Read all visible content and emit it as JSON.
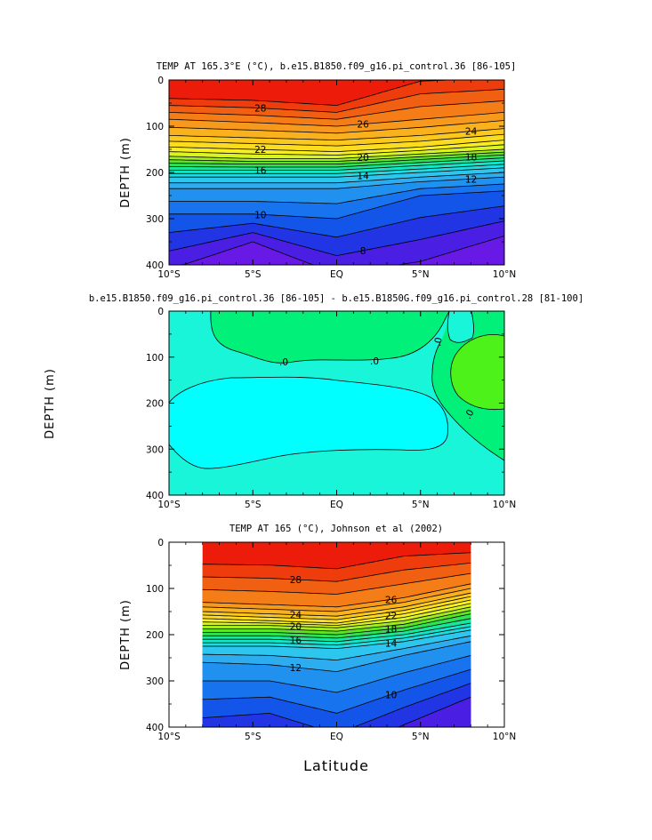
{
  "figure": {
    "xlabel": "Latitude"
  },
  "chart_data": [
    {
      "type": "heatmap",
      "title": "TEMP AT 165.3°E (°C), b.e15.B1850.f09_g16.pi_control.36 [86-105]",
      "ylabel": "DEPTH (m)",
      "xlabel": "",
      "xlim": [
        -10,
        10
      ],
      "ylim": [
        400,
        0
      ],
      "y_reversed": true,
      "x_ticks": [
        "10°S",
        "5°S",
        "EQ",
        "5°N",
        "10°N"
      ],
      "y_ticks": [
        "0",
        "100",
        "200",
        "300",
        "400"
      ],
      "data_extent": [
        -10,
        10
      ],
      "levels": [
        29,
        28,
        27,
        26,
        25,
        24,
        23,
        22,
        21,
        20,
        19,
        18,
        17,
        16,
        15,
        14,
        13,
        12,
        11,
        10,
        9,
        8,
        7
      ],
      "x": [
        -10,
        -5,
        0,
        5,
        10
      ],
      "isotherm_depths": {
        "28": [
          55,
          60,
          70,
          30,
          20
        ],
        "26": [
          85,
          92,
          100,
          85,
          70
        ],
        "24": [
          120,
          125,
          130,
          120,
          105
        ],
        "22": [
          145,
          150,
          155,
          145,
          130
        ],
        "20": [
          165,
          170,
          170,
          160,
          150
        ],
        "18": [
          180,
          182,
          182,
          172,
          162
        ],
        "16": [
          195,
          195,
          195,
          185,
          175
        ],
        "14": [
          210,
          210,
          210,
          200,
          190
        ],
        "12": [
          235,
          235,
          235,
          220,
          210
        ],
        "10": [
          290,
          290,
          300,
          250,
          240
        ],
        "8": [
          370,
          330,
          380,
          345,
          305
        ]
      },
      "contour_labels": [
        "28",
        "26",
        "24",
        "22",
        "20",
        "18",
        "16",
        "14",
        "12",
        "10",
        "8"
      ]
    },
    {
      "type": "heatmap",
      "title": "b.e15.B1850.f09_g16.pi_control.36 [86-105] - b.e15.B1850G.f09_g16.pi_control.28 [81-100]",
      "ylabel": "DEPTH (m)",
      "xlabel": "",
      "xlim": [
        -10,
        10
      ],
      "ylim": [
        400,
        0
      ],
      "y_reversed": true,
      "x_ticks": [
        "10°S",
        "5°S",
        "EQ",
        "5°N",
        "10°N"
      ],
      "y_ticks": [
        "0",
        "100",
        "200",
        "300",
        "400"
      ],
      "contour_labels": [
        ".0",
        ".0",
        ".0",
        ".0"
      ]
    },
    {
      "type": "heatmap",
      "title": "TEMP AT 165 (°C), Johnson et al (2002)",
      "ylabel": "DEPTH (m)",
      "xlabel": "Latitude",
      "xlim": [
        -10,
        10
      ],
      "ylim": [
        400,
        0
      ],
      "y_reversed": true,
      "x_ticks": [
        "10°S",
        "5°S",
        "EQ",
        "5°N",
        "10°N"
      ],
      "y_ticks": [
        "0",
        "100",
        "200",
        "300",
        "400"
      ],
      "data_extent": [
        -8,
        8
      ],
      "levels": [
        29,
        28,
        27,
        26,
        25,
        24,
        23,
        22,
        21,
        20,
        19,
        18,
        17,
        16,
        15,
        14,
        13,
        12,
        11,
        10,
        9,
        8
      ],
      "x": [
        -8,
        -4,
        0,
        4,
        8
      ],
      "isotherm_depths": {
        "28": [
          75,
          78,
          85,
          60,
          45
        ],
        "26": [
          130,
          135,
          140,
          120,
          90
        ],
        "24": [
          150,
          155,
          160,
          140,
          110
        ],
        "22": [
          165,
          170,
          175,
          155,
          125
        ],
        "20": [
          180,
          180,
          185,
          170,
          140
        ],
        "18": [
          195,
          195,
          200,
          185,
          155
        ],
        "16": [
          210,
          210,
          215,
          200,
          175
        ],
        "14": [
          225,
          225,
          230,
          215,
          190
        ],
        "12": [
          260,
          265,
          280,
          245,
          215
        ],
        "10": [
          340,
          335,
          370,
          320,
          275
        ]
      },
      "contour_labels": [
        "28",
        "26",
        "24",
        "22",
        "20",
        "18",
        "16",
        "14",
        "12",
        "10"
      ]
    }
  ],
  "colors": {
    "diff_background": "#19f5d9",
    "diff_negative": "#00ffff",
    "diff_positive_light": "#00f07a",
    "diff_positive_strong": "#4cf21a"
  }
}
